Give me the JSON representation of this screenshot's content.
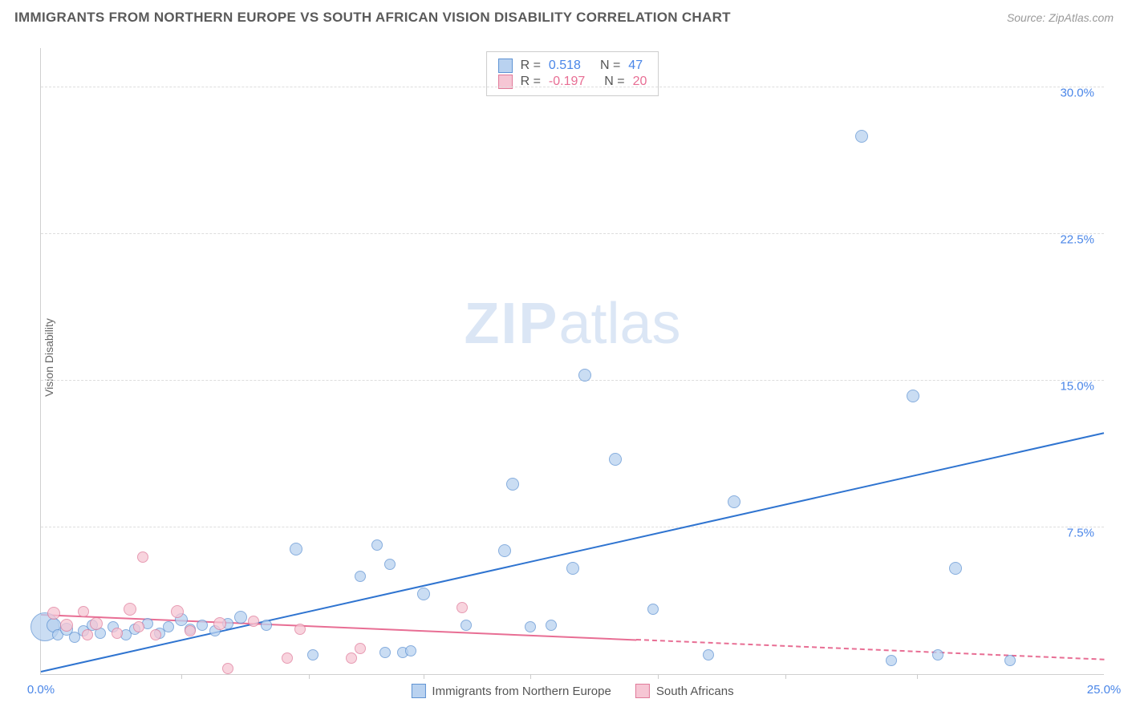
{
  "header": {
    "title": "IMMIGRANTS FROM NORTHERN EUROPE VS SOUTH AFRICAN VISION DISABILITY CORRELATION CHART",
    "source": "Source: ZipAtlas.com"
  },
  "chart": {
    "type": "scatter",
    "ylabel": "Vision Disability",
    "xlim": [
      0,
      25
    ],
    "ylim": [
      0,
      32
    ],
    "yticks": [
      {
        "v": 7.5,
        "label": "7.5%"
      },
      {
        "v": 15.0,
        "label": "15.0%"
      },
      {
        "v": 22.5,
        "label": "22.5%"
      },
      {
        "v": 30.0,
        "label": "30.0%"
      }
    ],
    "xticks": [
      {
        "v": 0,
        "label": "0.0%"
      },
      {
        "v": 25,
        "label": "25.0%"
      }
    ],
    "xtick_marks": [
      3.3,
      6.3,
      9.0,
      11.5,
      14.5,
      17.5,
      20.6
    ],
    "grid_color": "#dddddd",
    "border_color": "#d0d0d0",
    "background_color": "#ffffff",
    "watermark_prefix": "ZIP",
    "watermark_suffix": "atlas",
    "watermark_color": "#dbe6f5",
    "series": [
      {
        "name": "Immigrants from Northern Europe",
        "fill": "#b9d2f0",
        "stroke": "#5f93d3",
        "trend_color": "#2f74d0",
        "trend_p1": {
          "x": 0.0,
          "y": 0.1
        },
        "trend_p2": {
          "x": 25.0,
          "y": 12.3
        },
        "trend_solid_until": 25.0,
        "points": [
          {
            "x": 0.1,
            "y": 2.4,
            "r": 18
          },
          {
            "x": 0.3,
            "y": 2.5,
            "r": 9
          },
          {
            "x": 0.4,
            "y": 2.0,
            "r": 7
          },
          {
            "x": 0.6,
            "y": 2.3,
            "r": 8
          },
          {
            "x": 0.8,
            "y": 1.9,
            "r": 7
          },
          {
            "x": 1.0,
            "y": 2.2,
            "r": 7
          },
          {
            "x": 1.2,
            "y": 2.5,
            "r": 7
          },
          {
            "x": 1.4,
            "y": 2.1,
            "r": 7
          },
          {
            "x": 1.7,
            "y": 2.4,
            "r": 7
          },
          {
            "x": 2.0,
            "y": 2.0,
            "r": 7
          },
          {
            "x": 2.2,
            "y": 2.3,
            "r": 7
          },
          {
            "x": 2.5,
            "y": 2.6,
            "r": 7
          },
          {
            "x": 2.8,
            "y": 2.1,
            "r": 7
          },
          {
            "x": 3.0,
            "y": 2.4,
            "r": 7
          },
          {
            "x": 3.3,
            "y": 2.8,
            "r": 8
          },
          {
            "x": 3.5,
            "y": 2.3,
            "r": 7
          },
          {
            "x": 3.8,
            "y": 2.5,
            "r": 7
          },
          {
            "x": 4.1,
            "y": 2.2,
            "r": 7
          },
          {
            "x": 4.4,
            "y": 2.6,
            "r": 7
          },
          {
            "x": 4.7,
            "y": 2.9,
            "r": 8
          },
          {
            "x": 5.3,
            "y": 2.5,
            "r": 7
          },
          {
            "x": 6.0,
            "y": 6.4,
            "r": 8
          },
          {
            "x": 6.4,
            "y": 1.0,
            "r": 7
          },
          {
            "x": 7.5,
            "y": 5.0,
            "r": 7
          },
          {
            "x": 7.9,
            "y": 6.6,
            "r": 7
          },
          {
            "x": 8.1,
            "y": 1.1,
            "r": 7
          },
          {
            "x": 8.2,
            "y": 5.6,
            "r": 7
          },
          {
            "x": 8.5,
            "y": 1.1,
            "r": 7
          },
          {
            "x": 8.7,
            "y": 1.2,
            "r": 7
          },
          {
            "x": 9.0,
            "y": 4.1,
            "r": 8
          },
          {
            "x": 10.0,
            "y": 2.5,
            "r": 7
          },
          {
            "x": 10.9,
            "y": 6.3,
            "r": 8
          },
          {
            "x": 11.1,
            "y": 9.7,
            "r": 8
          },
          {
            "x": 11.5,
            "y": 2.4,
            "r": 7
          },
          {
            "x": 12.0,
            "y": 2.5,
            "r": 7
          },
          {
            "x": 12.5,
            "y": 5.4,
            "r": 8
          },
          {
            "x": 12.8,
            "y": 15.3,
            "r": 8
          },
          {
            "x": 13.5,
            "y": 11.0,
            "r": 8
          },
          {
            "x": 14.4,
            "y": 3.3,
            "r": 7
          },
          {
            "x": 15.7,
            "y": 1.0,
            "r": 7
          },
          {
            "x": 16.3,
            "y": 8.8,
            "r": 8
          },
          {
            "x": 20.0,
            "y": 0.7,
            "r": 7
          },
          {
            "x": 19.3,
            "y": 27.5,
            "r": 8
          },
          {
            "x": 20.5,
            "y": 14.2,
            "r": 8
          },
          {
            "x": 21.1,
            "y": 1.0,
            "r": 7
          },
          {
            "x": 21.5,
            "y": 5.4,
            "r": 8
          },
          {
            "x": 22.8,
            "y": 0.7,
            "r": 7
          }
        ]
      },
      {
        "name": "South Africans",
        "fill": "#f6c6d4",
        "stroke": "#e07b9a",
        "trend_color": "#e86e94",
        "trend_p1": {
          "x": 0.0,
          "y": 3.0
        },
        "trend_p2": {
          "x": 25.0,
          "y": 0.7
        },
        "trend_solid_until": 14.0,
        "points": [
          {
            "x": 0.3,
            "y": 3.1,
            "r": 8
          },
          {
            "x": 0.6,
            "y": 2.5,
            "r": 8
          },
          {
            "x": 1.0,
            "y": 3.2,
            "r": 7
          },
          {
            "x": 1.1,
            "y": 2.0,
            "r": 7
          },
          {
            "x": 1.3,
            "y": 2.6,
            "r": 8
          },
          {
            "x": 1.8,
            "y": 2.1,
            "r": 7
          },
          {
            "x": 2.1,
            "y": 3.3,
            "r": 8
          },
          {
            "x": 2.3,
            "y": 2.4,
            "r": 7
          },
          {
            "x": 2.4,
            "y": 6.0,
            "r": 7
          },
          {
            "x": 2.7,
            "y": 2.0,
            "r": 7
          },
          {
            "x": 3.2,
            "y": 3.2,
            "r": 8
          },
          {
            "x": 3.5,
            "y": 2.2,
            "r": 7
          },
          {
            "x": 4.2,
            "y": 2.6,
            "r": 8
          },
          {
            "x": 4.4,
            "y": 0.3,
            "r": 7
          },
          {
            "x": 5.0,
            "y": 2.7,
            "r": 7
          },
          {
            "x": 5.8,
            "y": 0.8,
            "r": 7
          },
          {
            "x": 6.1,
            "y": 2.3,
            "r": 7
          },
          {
            "x": 7.3,
            "y": 0.8,
            "r": 7
          },
          {
            "x": 7.5,
            "y": 1.3,
            "r": 7
          },
          {
            "x": 9.9,
            "y": 3.4,
            "r": 7
          }
        ]
      }
    ],
    "stats": [
      {
        "swatch_fill": "#b9d2f0",
        "swatch_stroke": "#5f93d3",
        "r_label": "R =",
        "r_val": "0.518",
        "n_label": "N =",
        "n_val": "47",
        "val_color": "#4a86e8"
      },
      {
        "swatch_fill": "#f6c6d4",
        "swatch_stroke": "#e07b9a",
        "r_label": "R =",
        "r_val": "-0.197",
        "n_label": "N =",
        "n_val": "20",
        "val_color": "#e86e94"
      }
    ],
    "bottom_legend": [
      {
        "swatch_fill": "#b9d2f0",
        "swatch_stroke": "#5f93d3",
        "label": "Immigrants from Northern Europe"
      },
      {
        "swatch_fill": "#f6c6d4",
        "swatch_stroke": "#e07b9a",
        "label": "South Africans"
      }
    ]
  }
}
